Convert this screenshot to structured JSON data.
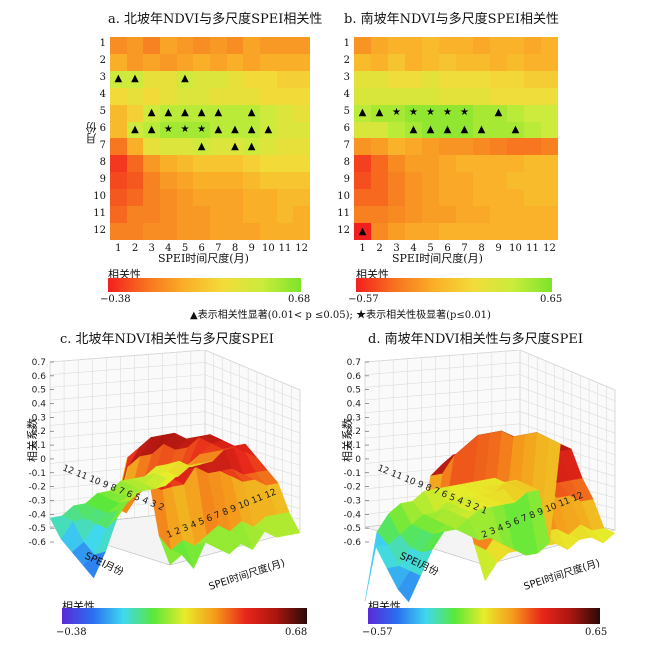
{
  "panel_a": {
    "title": "a. 北坡年NDVI与多尺度SPEI相关性",
    "ylabel": "月份",
    "xlabel": "SPEI时间尺度(月)",
    "row_labels": [
      "1",
      "2",
      "3",
      "4",
      "5",
      "6",
      "7",
      "8",
      "9",
      "10",
      "11",
      "12"
    ],
    "col_labels": [
      "1",
      "2",
      "3",
      "4",
      "5",
      "6",
      "7",
      "8",
      "9",
      "10",
      "11",
      "12"
    ],
    "colorbar": {
      "title": "相关性",
      "min_label": "−0.38",
      "max_label": "0.68"
    }
  },
  "panel_b": {
    "title": "b. 南坡年NDVI与多尺度SPEI相关性",
    "xlabel": "SPEI时间尺度(月)",
    "row_labels": [
      "1",
      "2",
      "3",
      "4",
      "5",
      "6",
      "7",
      "8",
      "9",
      "10",
      "11",
      "12"
    ],
    "col_labels": [
      "1",
      "2",
      "3",
      "4",
      "5",
      "6",
      "7",
      "8",
      "9",
      "10",
      "11",
      "12"
    ],
    "colorbar": {
      "title": "相关性",
      "min_label": "−0.57",
      "max_label": "0.65"
    }
  },
  "note": "▲表示相关性显著(0.01< p ≤0.05); ★表示相关性极显著(p≤0.01)",
  "panel_c": {
    "title": "c. 北坡年NDVI相关性与多尺度SPEI",
    "zlabel": "相关系数",
    "xlabel": "SPEI月份",
    "ylabel": "SPEI时间尺度(月)",
    "z_ticks": [
      "0.7",
      "0.6",
      "0.5",
      "0.4",
      "0.3",
      "0.2",
      "0.1",
      "0",
      "-0.1",
      "-0.2",
      "-0.3",
      "-0.4",
      "-0.5",
      "-0.6"
    ],
    "month_ticks": "12 11 10 9 8 7 6 5 4 3 2",
    "scale_ticks": "1 2 3 4 5 6 7 8 9 10 11 12",
    "colorbar": {
      "title": "相关性",
      "min_label": "−0.38",
      "max_label": "0.68"
    }
  },
  "panel_d": {
    "title": "d. 南坡年NDVI相关性与多尺度SPEI",
    "zlabel": "相关系数",
    "xlabel": "SPEI月份",
    "ylabel": "SPEI时间尺度(月)",
    "z_ticks": [
      "0.7",
      "0.6",
      "0.5",
      "0.4",
      "0.3",
      "0.2",
      "0.1",
      "0",
      "-0.1",
      "-0.2",
      "-0.3",
      "-0.4",
      "-0.5",
      "-0.6"
    ],
    "month_ticks": "12 11 10 9 8 7 6 5 4 3 2 1",
    "scale_ticks": "2 3 4 5 6 7 8 9 10 11 12",
    "colorbar": {
      "title": "相关性",
      "min_label": "−0.57",
      "max_label": "0.65"
    }
  },
  "chart_data": [
    {
      "type": "heatmap",
      "id": "a",
      "rows": "month 1-12",
      "cols": "SPEI time scale 1-12",
      "vmin": -0.38,
      "vmax": 0.68,
      "values": [
        [
          0.0,
          0.05,
          -0.05,
          0.1,
          0.05,
          0.0,
          0.05,
          0.0,
          0.1,
          0.05,
          0.05,
          0.05
        ],
        [
          0.15,
          0.05,
          0.1,
          0.05,
          0.1,
          0.15,
          0.1,
          0.15,
          0.1,
          0.15,
          0.15,
          0.15
        ],
        [
          0.5,
          0.5,
          0.4,
          0.4,
          0.5,
          0.45,
          0.45,
          0.4,
          0.35,
          0.35,
          0.3,
          0.3
        ],
        [
          0.35,
          0.4,
          0.35,
          0.4,
          0.45,
          0.45,
          0.4,
          0.4,
          0.4,
          0.35,
          0.35,
          0.35
        ],
        [
          0.2,
          0.3,
          0.5,
          0.55,
          0.55,
          0.55,
          0.55,
          0.55,
          0.55,
          0.5,
          0.45,
          0.4
        ],
        [
          0.2,
          0.5,
          0.55,
          0.6,
          0.6,
          0.6,
          0.55,
          0.55,
          0.55,
          0.5,
          0.45,
          0.45
        ],
        [
          -0.1,
          0.15,
          0.4,
          0.45,
          0.45,
          0.5,
          0.45,
          0.45,
          0.5,
          0.45,
          0.4,
          0.4
        ],
        [
          -0.3,
          -0.15,
          0.05,
          0.15,
          0.2,
          0.25,
          0.25,
          0.25,
          0.3,
          0.35,
          0.35,
          0.35
        ],
        [
          -0.25,
          -0.2,
          -0.05,
          0.05,
          0.1,
          0.15,
          0.15,
          0.15,
          0.2,
          0.25,
          0.25,
          0.25
        ],
        [
          -0.2,
          -0.15,
          -0.05,
          0.0,
          0.05,
          0.1,
          0.1,
          0.1,
          0.15,
          0.15,
          0.2,
          0.2
        ],
        [
          -0.15,
          -0.05,
          -0.05,
          0.0,
          0.05,
          0.05,
          0.1,
          0.1,
          0.15,
          0.15,
          0.2,
          0.15
        ],
        [
          -0.05,
          -0.05,
          0.0,
          0.0,
          0.05,
          0.05,
          0.1,
          0.1,
          0.1,
          0.15,
          0.15,
          0.15
        ]
      ],
      "markers": [
        {
          "row": 3,
          "col": 1,
          "sym": "▲"
        },
        {
          "row": 3,
          "col": 2,
          "sym": "▲"
        },
        {
          "row": 3,
          "col": 5,
          "sym": "▲"
        },
        {
          "row": 5,
          "col": 3,
          "sym": "▲"
        },
        {
          "row": 5,
          "col": 4,
          "sym": "▲"
        },
        {
          "row": 5,
          "col": 5,
          "sym": "▲"
        },
        {
          "row": 5,
          "col": 6,
          "sym": "▲"
        },
        {
          "row": 5,
          "col": 7,
          "sym": "▲"
        },
        {
          "row": 5,
          "col": 9,
          "sym": "▲"
        },
        {
          "row": 6,
          "col": 2,
          "sym": "▲"
        },
        {
          "row": 6,
          "col": 3,
          "sym": "▲"
        },
        {
          "row": 6,
          "col": 4,
          "sym": "★"
        },
        {
          "row": 6,
          "col": 5,
          "sym": "★"
        },
        {
          "row": 6,
          "col": 6,
          "sym": "★"
        },
        {
          "row": 6,
          "col": 7,
          "sym": "▲"
        },
        {
          "row": 6,
          "col": 8,
          "sym": "▲"
        },
        {
          "row": 6,
          "col": 9,
          "sym": "▲"
        },
        {
          "row": 6,
          "col": 10,
          "sym": "▲"
        },
        {
          "row": 7,
          "col": 6,
          "sym": "▲"
        },
        {
          "row": 7,
          "col": 8,
          "sym": "▲"
        },
        {
          "row": 7,
          "col": 9,
          "sym": "▲"
        }
      ]
    },
    {
      "type": "heatmap",
      "id": "b",
      "rows": "month 1-12",
      "cols": "SPEI time scale 1-12",
      "vmin": -0.57,
      "vmax": 0.65,
      "values": [
        [
          -0.1,
          0.0,
          0.05,
          0.05,
          0.1,
          0.05,
          0.05,
          0.0,
          0.05,
          0.05,
          0.0,
          0.05
        ],
        [
          0.1,
          0.05,
          0.15,
          0.05,
          0.1,
          0.15,
          0.1,
          0.1,
          0.05,
          0.1,
          0.05,
          0.05
        ],
        [
          0.35,
          0.35,
          0.3,
          0.3,
          0.35,
          0.3,
          0.3,
          0.3,
          0.25,
          0.25,
          0.2,
          0.2
        ],
        [
          0.4,
          0.4,
          0.4,
          0.4,
          0.4,
          0.35,
          0.35,
          0.35,
          0.3,
          0.3,
          0.3,
          0.3
        ],
        [
          0.5,
          0.55,
          0.55,
          0.6,
          0.6,
          0.6,
          0.6,
          0.55,
          0.55,
          0.5,
          0.45,
          0.45
        ],
        [
          0.4,
          0.4,
          0.5,
          0.55,
          0.6,
          0.6,
          0.6,
          0.55,
          0.55,
          0.55,
          0.5,
          0.45
        ],
        [
          -0.1,
          -0.05,
          0.05,
          0.0,
          -0.05,
          -0.1,
          -0.1,
          -0.15,
          -0.2,
          -0.25,
          -0.25,
          -0.2
        ],
        [
          -0.45,
          -0.3,
          -0.15,
          -0.05,
          -0.05,
          0.0,
          0.05,
          0.05,
          0.05,
          0.05,
          0.1,
          0.1
        ],
        [
          -0.4,
          -0.3,
          -0.2,
          -0.1,
          -0.05,
          0.0,
          0.0,
          0.05,
          0.05,
          0.1,
          0.1,
          0.1
        ],
        [
          -0.3,
          -0.3,
          -0.2,
          -0.1,
          -0.05,
          0.0,
          0.0,
          0.05,
          0.05,
          0.05,
          0.1,
          0.1
        ],
        [
          -0.2,
          -0.2,
          -0.15,
          -0.1,
          -0.05,
          -0.05,
          0.0,
          0.0,
          0.05,
          0.05,
          0.05,
          0.05
        ],
        [
          -0.57,
          -0.15,
          -0.05,
          0.0,
          0.0,
          0.05,
          0.05,
          0.05,
          0.05,
          0.05,
          0.05,
          0.05
        ]
      ],
      "markers": [
        {
          "row": 5,
          "col": 1,
          "sym": "▲"
        },
        {
          "row": 5,
          "col": 2,
          "sym": "▲"
        },
        {
          "row": 5,
          "col": 3,
          "sym": "★"
        },
        {
          "row": 5,
          "col": 4,
          "sym": "★"
        },
        {
          "row": 5,
          "col": 5,
          "sym": "★"
        },
        {
          "row": 5,
          "col": 6,
          "sym": "★"
        },
        {
          "row": 5,
          "col": 7,
          "sym": "★"
        },
        {
          "row": 5,
          "col": 9,
          "sym": "▲"
        },
        {
          "row": 6,
          "col": 4,
          "sym": "▲"
        },
        {
          "row": 6,
          "col": 5,
          "sym": "▲"
        },
        {
          "row": 6,
          "col": 6,
          "sym": "▲"
        },
        {
          "row": 6,
          "col": 7,
          "sym": "▲"
        },
        {
          "row": 6,
          "col": 8,
          "sym": "▲"
        },
        {
          "row": 6,
          "col": 10,
          "sym": "▲"
        },
        {
          "row": 12,
          "col": 1,
          "sym": "▲"
        }
      ]
    }
  ]
}
